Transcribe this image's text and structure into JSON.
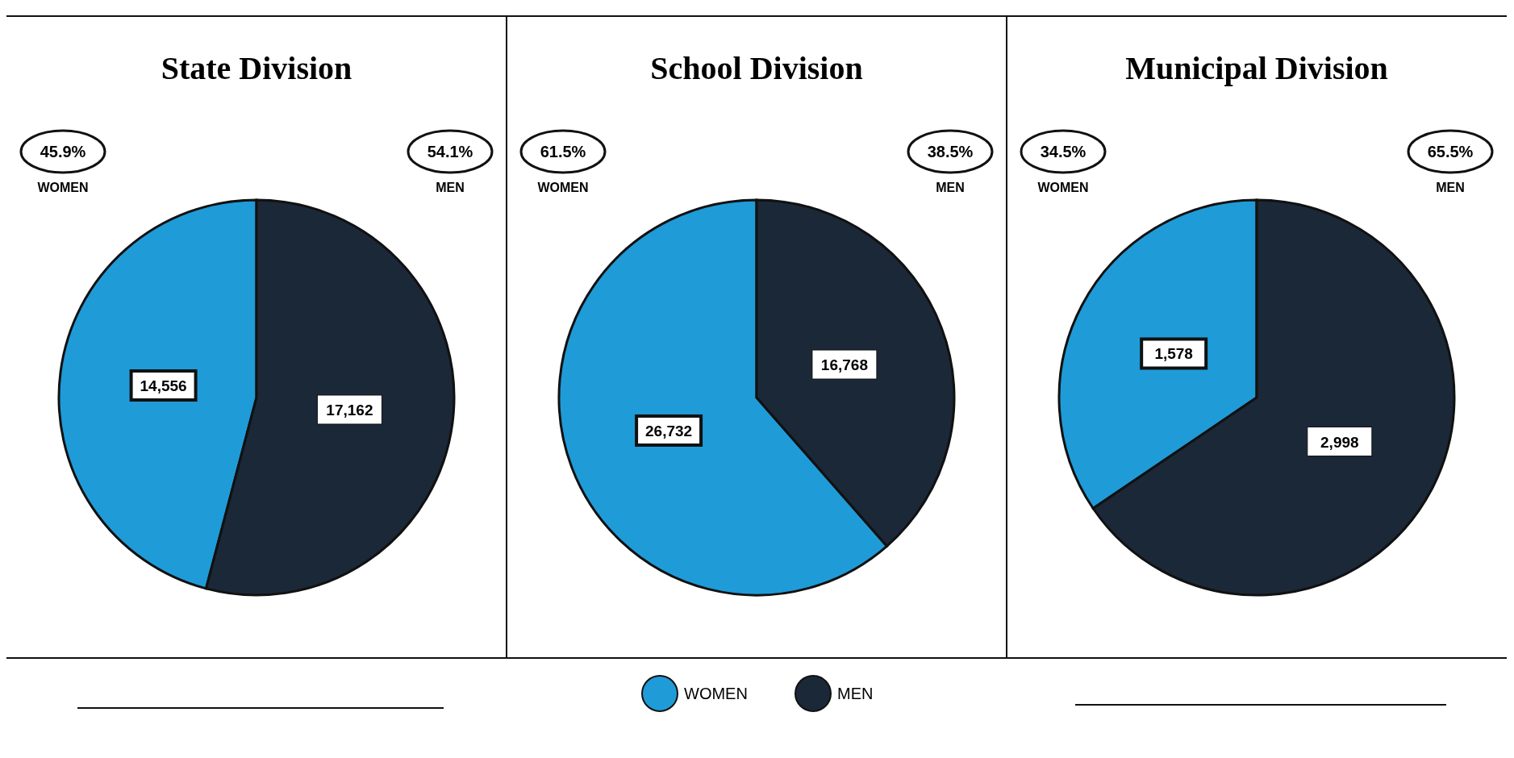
{
  "chart_data": [
    {
      "type": "pie",
      "title": "State Division",
      "categories": [
        "WOMEN",
        "MEN"
      ],
      "values": [
        14556,
        17162
      ],
      "colors": [
        "#1f9bd8",
        "#1b2838"
      ],
      "value_labels": [
        "14,556",
        "17,162"
      ],
      "annotations": [
        "45.9%",
        "54.1%"
      ]
    },
    {
      "type": "pie",
      "title": "School Division",
      "categories": [
        "WOMEN",
        "MEN"
      ],
      "values": [
        26732,
        16768
      ],
      "colors": [
        "#1f9bd8",
        "#1b2838"
      ],
      "value_labels": [
        "26,732",
        "16,768"
      ],
      "annotations": [
        "61.5%",
        "38.5%"
      ],
      "legend": "bottom"
    },
    {
      "type": "pie",
      "title": "Municipal Division",
      "categories": [
        "WOMEN",
        "MEN"
      ],
      "values": [
        1578,
        2998
      ],
      "colors": [
        "#1f9bd8",
        "#1b2838"
      ],
      "value_labels": [
        "1,578",
        "2,998"
      ],
      "annotations": [
        "34.5%",
        "65.5%"
      ]
    }
  ]
}
